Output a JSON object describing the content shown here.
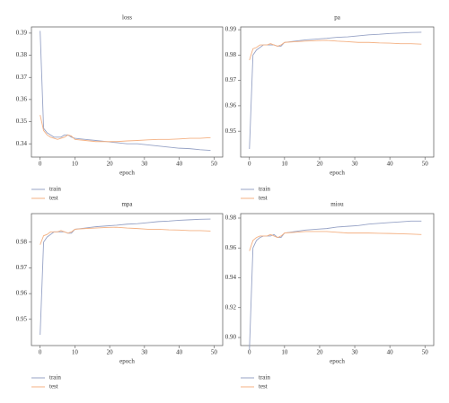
{
  "chart_data": [
    {
      "type": "line",
      "title": "loss",
      "xlabel": "epoch",
      "x": [
        0,
        1,
        2,
        3,
        4,
        5,
        6,
        7,
        8,
        9,
        10,
        13,
        16,
        19,
        22,
        25,
        28,
        31,
        34,
        37,
        40,
        43,
        46,
        49
      ],
      "series": [
        {
          "name": "train",
          "color": "#97a3c6",
          "values": [
            0.391,
            0.347,
            0.345,
            0.344,
            0.343,
            0.343,
            0.343,
            0.344,
            0.344,
            0.343,
            0.3425,
            0.342,
            0.3415,
            0.341,
            0.3405,
            0.34,
            0.34,
            0.3395,
            0.339,
            0.3385,
            0.338,
            0.3378,
            0.3373,
            0.337
          ]
        },
        {
          "name": "test",
          "color": "#f4b183",
          "values": [
            0.353,
            0.346,
            0.344,
            0.343,
            0.3425,
            0.342,
            0.3425,
            0.343,
            0.344,
            0.3435,
            0.342,
            0.3415,
            0.341,
            0.341,
            0.341,
            0.3413,
            0.3415,
            0.3418,
            0.342,
            0.342,
            0.3422,
            0.3425,
            0.3425,
            0.3428
          ]
        }
      ],
      "xlim": [
        -2.5,
        52.5
      ],
      "ylim": [
        0.334,
        0.3928
      ],
      "xticks": [
        0,
        10,
        20,
        30,
        40,
        50
      ],
      "yticks": [
        0.34,
        0.35,
        0.36,
        0.37,
        0.38,
        0.39
      ]
    },
    {
      "type": "line",
      "title": "pa",
      "xlabel": "epoch",
      "x": [
        0,
        1,
        2,
        3,
        4,
        5,
        6,
        7,
        8,
        9,
        10,
        13,
        16,
        19,
        22,
        25,
        28,
        31,
        34,
        37,
        40,
        43,
        46,
        49
      ],
      "series": [
        {
          "name": "train",
          "color": "#97a3c6",
          "values": [
            0.943,
            0.98,
            0.982,
            0.983,
            0.984,
            0.984,
            0.984,
            0.984,
            0.9835,
            0.9835,
            0.985,
            0.9855,
            0.986,
            0.9863,
            0.9866,
            0.987,
            0.9872,
            0.9876,
            0.988,
            0.9882,
            0.9885,
            0.9887,
            0.9889,
            0.989
          ]
        },
        {
          "name": "test",
          "color": "#f4b183",
          "values": [
            0.978,
            0.9825,
            0.983,
            0.984,
            0.984,
            0.984,
            0.9845,
            0.984,
            0.9835,
            0.984,
            0.985,
            0.9853,
            0.9855,
            0.9857,
            0.9858,
            0.9855,
            0.9853,
            0.985,
            0.985,
            0.9848,
            0.9847,
            0.9845,
            0.9845,
            0.9843
          ]
        }
      ],
      "xlim": [
        -2.5,
        52.5
      ],
      "ylim": [
        0.9398,
        0.9911
      ],
      "xticks": [
        0,
        10,
        20,
        30,
        40,
        50
      ],
      "yticks": [
        0.95,
        0.96,
        0.97,
        0.98,
        0.99
      ]
    },
    {
      "type": "line",
      "title": "mpa",
      "xlabel": "epoch",
      "x": [
        0,
        1,
        2,
        3,
        4,
        5,
        6,
        7,
        8,
        9,
        10,
        13,
        16,
        19,
        22,
        25,
        28,
        31,
        34,
        37,
        40,
        43,
        46,
        49
      ],
      "series": [
        {
          "name": "train",
          "color": "#97a3c6",
          "values": [
            0.944,
            0.98,
            0.982,
            0.983,
            0.984,
            0.984,
            0.984,
            0.984,
            0.9835,
            0.9835,
            0.985,
            0.9855,
            0.986,
            0.9863,
            0.9866,
            0.987,
            0.9872,
            0.9876,
            0.988,
            0.9882,
            0.9885,
            0.9887,
            0.9889,
            0.989
          ]
        },
        {
          "name": "test",
          "color": "#f4b183",
          "values": [
            0.979,
            0.9825,
            0.983,
            0.984,
            0.984,
            0.984,
            0.9845,
            0.984,
            0.9835,
            0.984,
            0.985,
            0.9853,
            0.9855,
            0.9857,
            0.9858,
            0.9855,
            0.9853,
            0.985,
            0.985,
            0.9848,
            0.9847,
            0.9845,
            0.9845,
            0.9843
          ]
        }
      ],
      "xlim": [
        -2.5,
        52.5
      ],
      "ylim": [
        0.9398,
        0.9911
      ],
      "xticks": [
        0,
        10,
        20,
        30,
        40,
        50
      ],
      "yticks": [
        0.95,
        0.96,
        0.97,
        0.98
      ]
    },
    {
      "type": "line",
      "title": "miou",
      "xlabel": "epoch",
      "x": [
        0,
        1,
        2,
        3,
        4,
        5,
        6,
        7,
        8,
        9,
        10,
        13,
        16,
        19,
        22,
        25,
        28,
        31,
        34,
        37,
        40,
        43,
        46,
        49
      ],
      "series": [
        {
          "name": "train",
          "color": "#97a3c6",
          "values": [
            0.892,
            0.96,
            0.965,
            0.967,
            0.968,
            0.968,
            0.968,
            0.969,
            0.967,
            0.967,
            0.97,
            0.971,
            0.972,
            0.9725,
            0.973,
            0.974,
            0.9745,
            0.975,
            0.976,
            0.9765,
            0.977,
            0.9775,
            0.978,
            0.978
          ]
        },
        {
          "name": "test",
          "color": "#f4b183",
          "values": [
            0.958,
            0.965,
            0.967,
            0.968,
            0.968,
            0.968,
            0.969,
            0.968,
            0.967,
            0.968,
            0.97,
            0.9705,
            0.971,
            0.971,
            0.971,
            0.9705,
            0.97,
            0.97,
            0.97,
            0.9698,
            0.9697,
            0.9695,
            0.9693,
            0.969
          ]
        }
      ],
      "xlim": [
        -2.5,
        52.5
      ],
      "ylim": [
        0.8946,
        0.983
      ],
      "xticks": [
        0,
        10,
        20,
        30,
        40,
        50
      ],
      "yticks": [
        {
          "value": 0.9,
          "label": "0.90"
        },
        0.92,
        0.94,
        0.96,
        0.98
      ]
    }
  ]
}
